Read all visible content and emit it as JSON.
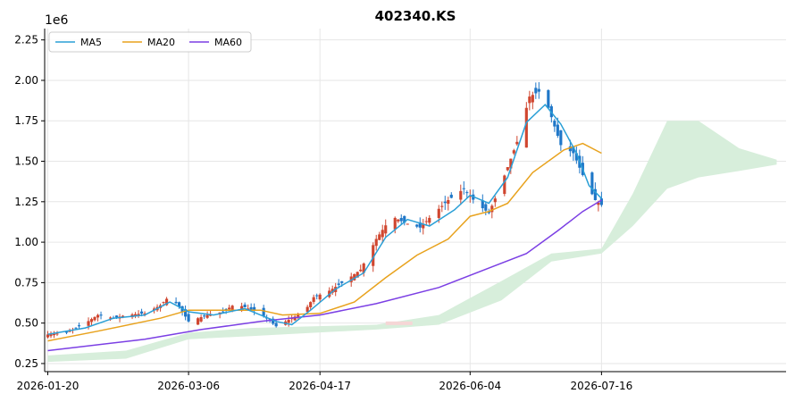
{
  "chart_data": {
    "type": "candlestick",
    "title": "402340.KS",
    "y_offset_label": "1e6",
    "ylim": [
      0.2,
      2.32
    ],
    "y_ticks": [
      0.25,
      0.5,
      0.75,
      1.0,
      1.25,
      1.5,
      1.75,
      2.0,
      2.25
    ],
    "y_tick_labels": [
      "0.25",
      "0.50",
      "0.75",
      "1.00",
      "1.25",
      "1.50",
      "1.75",
      "2.00",
      "2.25"
    ],
    "x_range": [
      "2026-01-19",
      "2026-09-13"
    ],
    "x_ticks": [
      "2026-01-20",
      "2026-03-06",
      "2026-04-17",
      "2026-06-04",
      "2026-07-16"
    ],
    "grid": true,
    "legend_position": "top-left",
    "colors": {
      "up": "#d0462f",
      "down": "#1f77c8",
      "ma5": "#2a9fd6",
      "ma20": "#e8a21d",
      "ma60": "#7b3fe4",
      "cloud": "#d7eedb",
      "cloud_bear": "#f6d6d6"
    },
    "series": [
      {
        "name": "MA5",
        "color": "#2a9fd6"
      },
      {
        "name": "MA20",
        "color": "#e8a21d"
      },
      {
        "name": "MA60",
        "color": "#7b3fe4"
      }
    ],
    "price_path": [
      [
        "2026-01-20",
        0.43
      ],
      [
        "2026-01-26",
        0.44
      ],
      [
        "2026-02-01",
        0.5
      ],
      [
        "2026-02-05",
        0.55
      ],
      [
        "2026-02-10",
        0.53
      ],
      [
        "2026-02-14",
        0.55
      ],
      [
        "2026-02-20",
        0.56
      ],
      [
        "2026-02-25",
        0.61
      ],
      [
        "2026-02-28",
        0.67
      ],
      [
        "2026-03-03",
        0.6
      ],
      [
        "2026-03-06",
        0.51
      ],
      [
        "2026-03-12",
        0.55
      ],
      [
        "2026-03-17",
        0.57
      ],
      [
        "2026-03-21",
        0.62
      ],
      [
        "2026-03-25",
        0.59
      ],
      [
        "2026-03-29",
        0.56
      ],
      [
        "2026-04-03",
        0.48
      ],
      [
        "2026-04-07",
        0.52
      ],
      [
        "2026-04-12",
        0.57
      ],
      [
        "2026-04-15",
        0.66
      ],
      [
        "2026-04-20",
        0.7
      ],
      [
        "2026-04-25",
        0.76
      ],
      [
        "2026-04-30",
        0.83
      ],
      [
        "2026-05-05",
        1.02
      ],
      [
        "2026-05-10",
        1.16
      ],
      [
        "2026-05-14",
        1.12
      ],
      [
        "2026-05-19",
        1.09
      ],
      [
        "2026-05-23",
        1.17
      ],
      [
        "2026-05-28",
        1.26
      ],
      [
        "2026-06-02",
        1.33
      ],
      [
        "2026-06-06",
        1.24
      ],
      [
        "2026-06-10",
        1.18
      ],
      [
        "2026-06-14",
        1.36
      ],
      [
        "2026-06-19",
        1.62
      ],
      [
        "2026-06-23",
        1.9
      ],
      [
        "2026-06-26",
        1.93
      ],
      [
        "2026-06-29",
        1.83
      ],
      [
        "2026-07-03",
        1.6
      ],
      [
        "2026-07-07",
        1.55
      ],
      [
        "2026-07-11",
        1.37
      ],
      [
        "2026-07-14",
        1.26
      ],
      [
        "2026-07-16",
        1.23
      ]
    ],
    "ma5": [
      [
        "2026-01-20",
        0.43
      ],
      [
        "2026-02-01",
        0.47
      ],
      [
        "2026-02-10",
        0.53
      ],
      [
        "2026-02-20",
        0.55
      ],
      [
        "2026-02-28",
        0.63
      ],
      [
        "2026-03-06",
        0.57
      ],
      [
        "2026-03-14",
        0.55
      ],
      [
        "2026-03-24",
        0.59
      ],
      [
        "2026-04-03",
        0.51
      ],
      [
        "2026-04-08",
        0.49
      ],
      [
        "2026-04-14",
        0.58
      ],
      [
        "2026-04-22",
        0.71
      ],
      [
        "2026-05-01",
        0.81
      ],
      [
        "2026-05-08",
        1.03
      ],
      [
        "2026-05-15",
        1.14
      ],
      [
        "2026-05-22",
        1.1
      ],
      [
        "2026-05-30",
        1.2
      ],
      [
        "2026-06-04",
        1.29
      ],
      [
        "2026-06-10",
        1.24
      ],
      [
        "2026-06-16",
        1.4
      ],
      [
        "2026-06-22",
        1.74
      ],
      [
        "2026-06-28",
        1.85
      ],
      [
        "2026-07-03",
        1.73
      ],
      [
        "2026-07-08",
        1.55
      ],
      [
        "2026-07-12",
        1.35
      ],
      [
        "2026-07-16",
        1.27
      ]
    ],
    "ma20": [
      [
        "2026-01-20",
        0.39
      ],
      [
        "2026-02-05",
        0.45
      ],
      [
        "2026-02-25",
        0.53
      ],
      [
        "2026-03-06",
        0.58
      ],
      [
        "2026-03-29",
        0.58
      ],
      [
        "2026-04-05",
        0.55
      ],
      [
        "2026-04-17",
        0.56
      ],
      [
        "2026-04-28",
        0.63
      ],
      [
        "2026-05-08",
        0.78
      ],
      [
        "2026-05-18",
        0.92
      ],
      [
        "2026-05-28",
        1.02
      ],
      [
        "2026-06-04",
        1.16
      ],
      [
        "2026-06-10",
        1.19
      ],
      [
        "2026-06-16",
        1.24
      ],
      [
        "2026-06-24",
        1.43
      ],
      [
        "2026-07-04",
        1.57
      ],
      [
        "2026-07-10",
        1.61
      ],
      [
        "2026-07-16",
        1.55
      ]
    ],
    "ma60": [
      [
        "2026-01-20",
        0.33
      ],
      [
        "2026-02-20",
        0.4
      ],
      [
        "2026-03-10",
        0.46
      ],
      [
        "2026-03-29",
        0.51
      ],
      [
        "2026-04-17",
        0.55
      ],
      [
        "2026-05-05",
        0.62
      ],
      [
        "2026-05-25",
        0.72
      ],
      [
        "2026-06-10",
        0.84
      ],
      [
        "2026-06-22",
        0.93
      ],
      [
        "2026-07-02",
        1.07
      ],
      [
        "2026-07-10",
        1.19
      ],
      [
        "2026-07-16",
        1.26
      ]
    ],
    "cloud_upper": [
      [
        "2026-01-20",
        0.3
      ],
      [
        "2026-02-14",
        0.33
      ],
      [
        "2026-03-06",
        0.44
      ],
      [
        "2026-03-26",
        0.47
      ],
      [
        "2026-04-15",
        0.48
      ],
      [
        "2026-05-05",
        0.49
      ],
      [
        "2026-05-25",
        0.55
      ],
      [
        "2026-06-14",
        0.76
      ],
      [
        "2026-06-30",
        0.93
      ],
      [
        "2026-07-16",
        0.96
      ],
      [
        "2026-07-26",
        1.3
      ],
      [
        "2026-08-06",
        1.75
      ],
      [
        "2026-08-16",
        1.75
      ],
      [
        "2026-08-29",
        1.58
      ],
      [
        "2026-09-10",
        1.51
      ]
    ],
    "cloud_lower": [
      [
        "2026-01-20",
        0.26
      ],
      [
        "2026-02-14",
        0.28
      ],
      [
        "2026-03-06",
        0.4
      ],
      [
        "2026-03-26",
        0.42
      ],
      [
        "2026-04-15",
        0.44
      ],
      [
        "2026-05-05",
        0.46
      ],
      [
        "2026-05-25",
        0.49
      ],
      [
        "2026-06-14",
        0.64
      ],
      [
        "2026-06-30",
        0.88
      ],
      [
        "2026-07-16",
        0.93
      ],
      [
        "2026-07-26",
        1.1
      ],
      [
        "2026-08-06",
        1.33
      ],
      [
        "2026-08-16",
        1.4
      ],
      [
        "2026-08-29",
        1.44
      ],
      [
        "2026-09-10",
        1.48
      ]
    ]
  }
}
